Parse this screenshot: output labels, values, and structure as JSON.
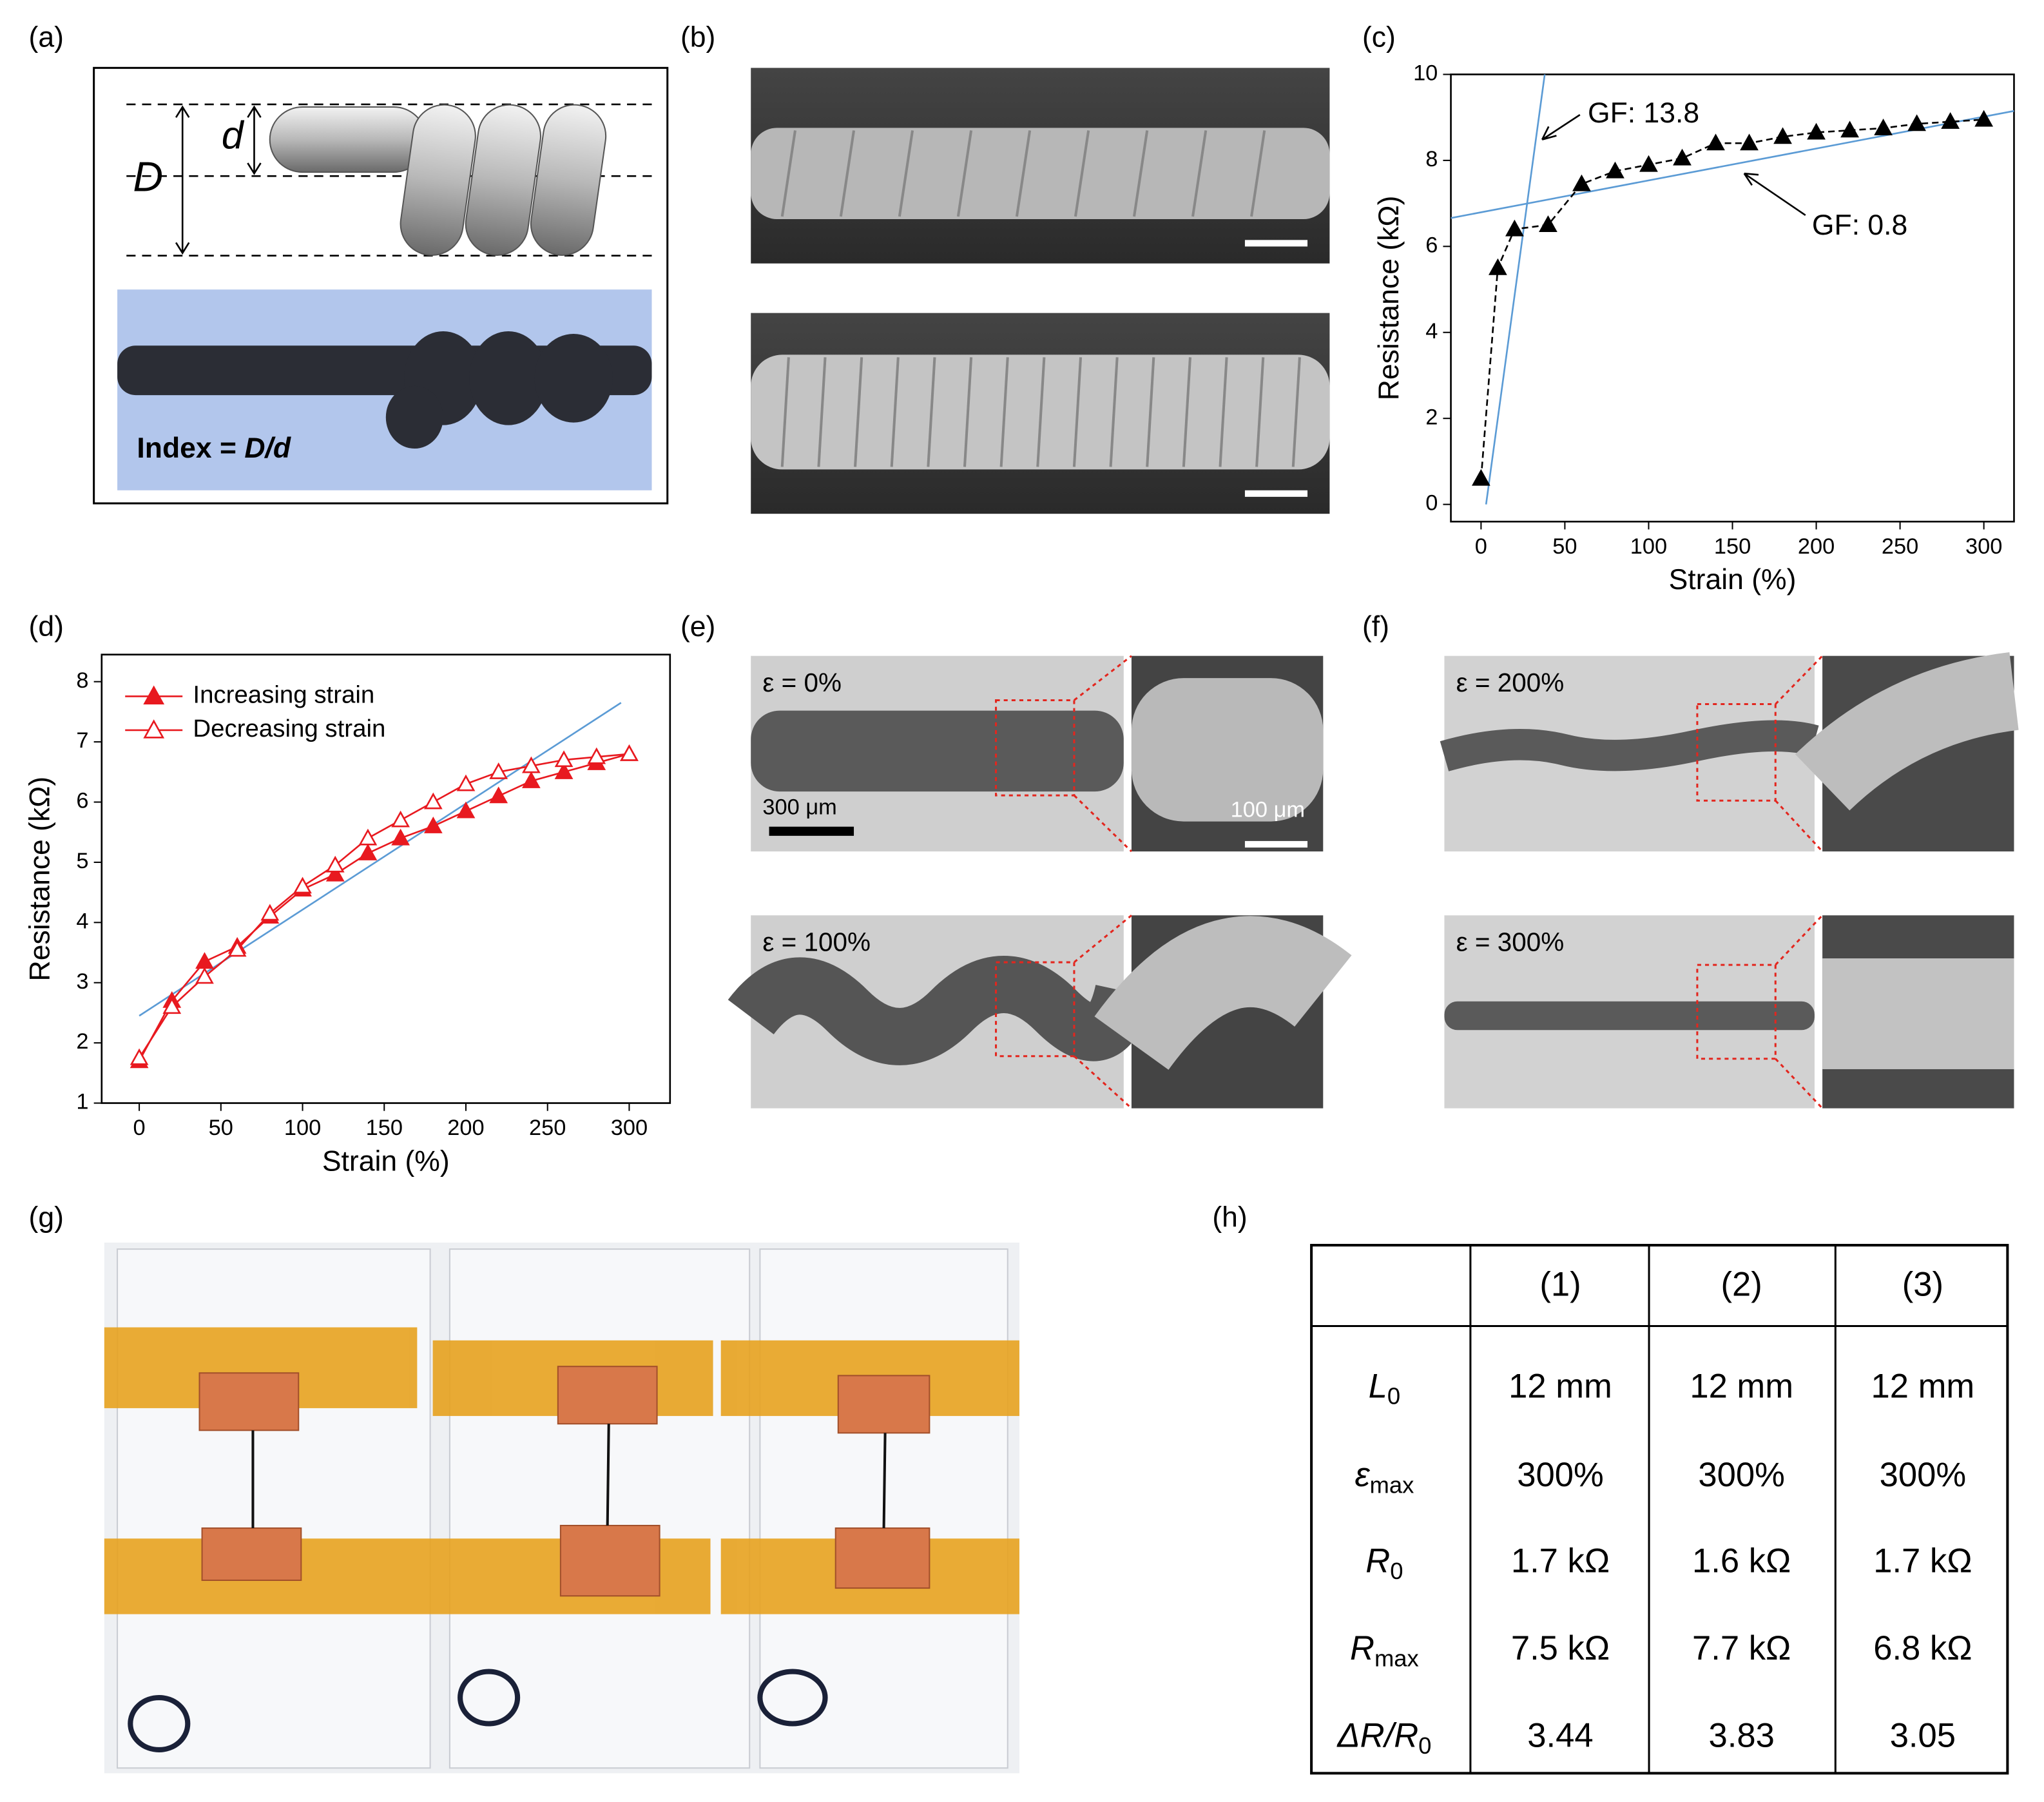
{
  "panel_labels": [
    "(a)",
    "(b)",
    "(c)",
    "(d)",
    "(e)",
    "(f)",
    "(g)",
    "(h)"
  ],
  "panel_a": {
    "d": "d",
    "D": "D",
    "index_label": "Index = ",
    "index_ratio": "D/d"
  },
  "panel_e": {
    "states": [
      "ε = 0%",
      "ε = 100%"
    ],
    "scale_big": "300 μm",
    "scale_small": "100 μm"
  },
  "panel_f": {
    "states": [
      "ε = 200%",
      "ε = 300%"
    ]
  },
  "chart_data": [
    {
      "type": "line",
      "x_label": "Strain (%)",
      "y_label": "Resistance (kΩ)",
      "x": [
        0,
        10,
        20,
        40,
        60,
        80,
        100,
        120,
        140,
        160,
        180,
        200,
        220,
        240,
        260,
        280,
        300
      ],
      "values": [
        0.6,
        5.5,
        6.4,
        6.5,
        7.45,
        7.75,
        7.9,
        8.05,
        8.4,
        8.4,
        8.55,
        8.65,
        8.7,
        8.75,
        8.85,
        8.9,
        8.95
      ],
      "color": "#000000",
      "marker": "triangle",
      "marker_fill": "filled",
      "line_style": "dashed",
      "xlim": [
        -18,
        318
      ],
      "ylim": [
        -0.4,
        10
      ],
      "xticks": [
        0,
        50,
        100,
        150,
        200,
        250,
        300
      ],
      "yticks": [
        0,
        2,
        4,
        6,
        8,
        10
      ],
      "fit_lines": [
        {
          "x": [
            3,
            38
          ],
          "y": [
            0,
            10
          ],
          "color": "#5b9bd5"
        },
        {
          "x": [
            -18,
            318
          ],
          "y": [
            6.66,
            9.15
          ],
          "color": "#5b9bd5"
        }
      ],
      "annotations": [
        "GF: 13.8",
        "GF: 0.8"
      ]
    },
    {
      "type": "line",
      "x_label": "Strain (%)",
      "y_label": "Resistance (kΩ)",
      "x": [
        0,
        20,
        40,
        60,
        80,
        100,
        120,
        140,
        160,
        180,
        200,
        220,
        240,
        260,
        280,
        300
      ],
      "series": [
        {
          "name": "Increasing strain",
          "color": "#e8191f",
          "marker": "triangle",
          "marker_fill": "filled",
          "values": [
            1.7,
            2.7,
            3.35,
            3.6,
            4.1,
            4.55,
            4.8,
            5.15,
            5.4,
            5.6,
            5.85,
            6.1,
            6.35,
            6.5,
            6.65,
            6.8
          ]
        },
        {
          "name": "Decreasing strain",
          "color": "#e8191f",
          "marker": "triangle",
          "marker_fill": "none",
          "values": [
            1.75,
            2.6,
            3.1,
            3.55,
            4.15,
            4.6,
            4.95,
            5.4,
            5.7,
            6.0,
            6.3,
            6.5,
            6.6,
            6.7,
            6.75,
            6.8
          ]
        }
      ],
      "line_style": "solid",
      "legend": "top-left",
      "xlim": [
        -23,
        325
      ],
      "ylim": [
        1,
        8.45
      ],
      "xticks": [
        0,
        50,
        100,
        150,
        200,
        250,
        300
      ],
      "yticks": [
        1,
        2,
        3,
        4,
        5,
        6,
        7,
        8
      ],
      "fit_lines": [
        {
          "x": [
            0,
            295
          ],
          "y": [
            2.45,
            7.65
          ],
          "color": "#5b9bd5"
        }
      ]
    }
  ],
  "table": {
    "header": [
      "(1)",
      "(2)",
      "(3)"
    ],
    "rows": [
      {
        "label": {
          "main": "L",
          "sub": "0"
        },
        "cells": [
          "12 mm",
          "12 mm",
          "12 mm"
        ]
      },
      {
        "label": {
          "main": "ε",
          "sub": "max"
        },
        "cells": [
          "300%",
          "300%",
          "300%"
        ]
      },
      {
        "label": {
          "main": "R",
          "sub": "0"
        },
        "cells": [
          "1.7 kΩ",
          "1.6 kΩ",
          "1.7 kΩ"
        ]
      },
      {
        "label": {
          "main": "R",
          "sub": "max"
        },
        "cells": [
          "7.5 kΩ",
          "7.7 kΩ",
          "6.8 kΩ"
        ]
      },
      {
        "label": {
          "main": "ΔR/R",
          "sub": "0"
        },
        "cells": [
          "3.44",
          "3.83",
          "3.05"
        ]
      }
    ]
  }
}
